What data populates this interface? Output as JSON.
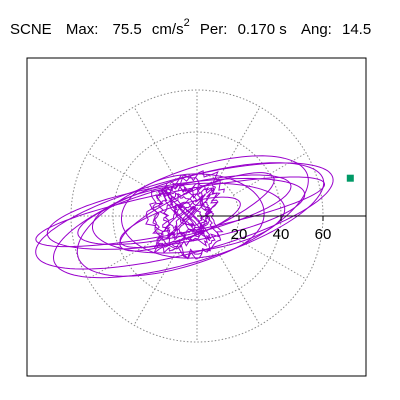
{
  "header": {
    "station": "SCNE",
    "max_label": "Max:",
    "max_value": "75.5",
    "max_unit": "cm/s",
    "max_unit_exponent": "2",
    "per_label": "Per:",
    "per_value": "0.170 s",
    "ang_label": "Ang:",
    "ang_value": "14.5"
  },
  "chart_data": {
    "type": "polar-orbit",
    "radial_ticks": [
      20,
      40,
      60
    ],
    "ring_radii": [
      20,
      40,
      60
    ],
    "spoke_angles_deg": [
      0,
      30,
      60,
      90,
      120,
      150,
      180,
      210,
      240,
      270,
      300,
      330
    ],
    "axis_range": [
      -80,
      80
    ],
    "grid": "dotted",
    "reference_angle_deg": 14.5,
    "reference_length": 75.5,
    "colors": {
      "trace": "#9900cc",
      "marker": "#009966",
      "grid": "#888888",
      "axis": "#000000"
    },
    "loops": [
      {
        "a": 73,
        "b": 18,
        "cx": -6,
        "cy": 0,
        "rot": 14.5
      },
      {
        "a": 70,
        "b": 10,
        "cx": -8,
        "cy": 2,
        "rot": 11
      },
      {
        "a": 67,
        "b": 20,
        "cx": -4,
        "cy": -2,
        "rot": 17
      },
      {
        "a": 62,
        "b": 14,
        "cx": -10,
        "cy": 1,
        "rot": 9
      },
      {
        "a": 58,
        "b": 22,
        "cx": -2,
        "cy": 0,
        "rot": 20
      },
      {
        "a": 52,
        "b": 12,
        "cx": -6,
        "cy": 3,
        "rot": 13
      },
      {
        "a": 46,
        "b": 16,
        "cx": -4,
        "cy": -1,
        "rot": 6
      },
      {
        "a": 40,
        "b": 10,
        "cx": 0,
        "cy": 2,
        "rot": 24
      },
      {
        "a": 34,
        "b": 20,
        "cx": -2,
        "cy": 0,
        "rot": 3
      },
      {
        "a": 30,
        "b": 8,
        "cx": -8,
        "cy": -3,
        "rot": 18
      }
    ],
    "core": {
      "cx": -5,
      "cy": 0,
      "rx": 18,
      "ry": 20
    },
    "endpoint": {
      "x": 73,
      "y": 18
    }
  }
}
